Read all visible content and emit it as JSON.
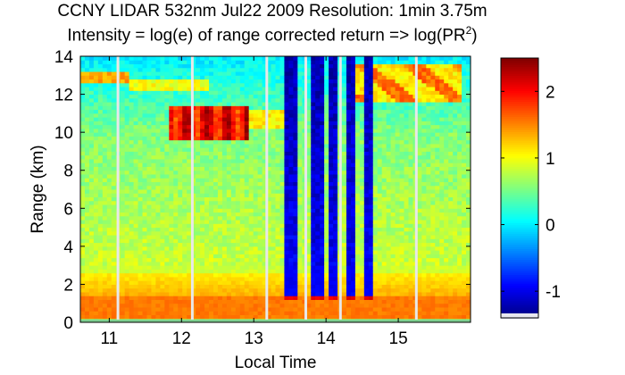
{
  "title_line1": "CCNY LIDAR 532nm Jul22 2009 Resolution: 1min 3.75m",
  "title_line2": "Intensity = log(e) of range corrected return => log(PR",
  "title_line2_sup": "2",
  "title_line2_end": ")",
  "chart_data": {
    "type": "heatmap",
    "title": "CCNY LIDAR 532nm Jul22 2009 Resolution: 1min 3.75m",
    "subtitle": "Intensity = log(e) of range corrected return => log(PR2)",
    "xlabel": "Local Time",
    "ylabel": "Range (km)",
    "xlim": [
      10.6,
      16.0
    ],
    "ylim": [
      0,
      14
    ],
    "xticks": [
      11,
      12,
      13,
      14,
      15
    ],
    "yticks": [
      0,
      2,
      4,
      6,
      8,
      10,
      12,
      14
    ],
    "colorbar": {
      "colormap": "jet",
      "range": [
        -1.4,
        2.5
      ],
      "ticks": [
        -1,
        0,
        1,
        2
      ]
    },
    "features": [
      {
        "name": "surface/boundary layer",
        "range_km": [
          0,
          2.7
        ],
        "value": 1.3
      },
      {
        "name": "free troposphere background",
        "range_km": [
          2.7,
          14
        ],
        "value": 0.5
      },
      {
        "name": "cirrus band",
        "time": [
          11.8,
          12.9
        ],
        "range_km": [
          9.6,
          11.4
        ],
        "value": 2.0
      },
      {
        "name": "upper cloud layer early",
        "time": [
          10.6,
          11.2
        ],
        "range_km": [
          12.7,
          13.1
        ],
        "value": 1.3
      },
      {
        "name": "upper cloud layer late",
        "time": [
          14.5,
          15.8
        ],
        "range_km": [
          11.8,
          13.6
        ],
        "value": 1.2
      },
      {
        "name": "low cloud columns (signal attenuation above)",
        "time": [
          13.45,
          14.6
        ],
        "range_km": [
          1.3,
          14
        ],
        "value": -1.0
      }
    ],
    "data_gaps": [
      11.12,
      12.15,
      13.18,
      13.72,
      14.2,
      15.25
    ]
  }
}
